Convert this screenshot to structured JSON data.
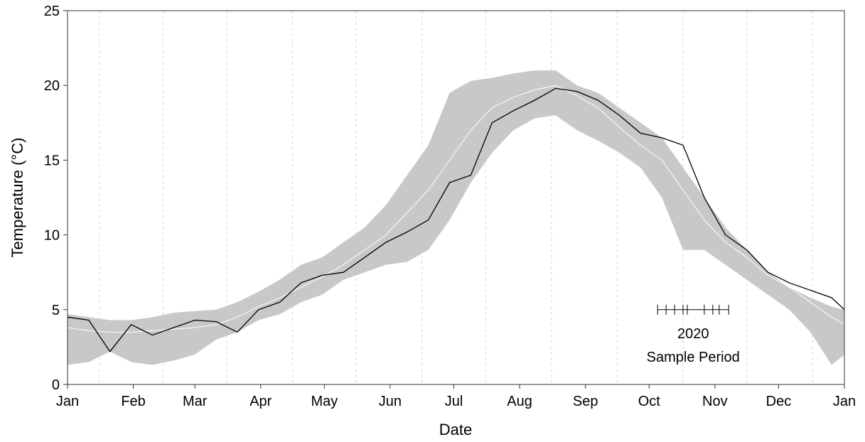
{
  "chart_data": {
    "type": "line",
    "xlabel": "Date",
    "ylabel": "Temperature (°C)",
    "x": [
      0,
      10,
      20,
      30,
      40,
      50,
      60,
      70,
      80,
      90,
      100,
      110,
      120,
      130,
      140,
      150,
      160,
      170,
      180,
      190,
      200,
      210,
      220,
      230,
      240,
      250,
      260,
      270,
      280,
      290,
      300,
      310,
      320,
      330,
      340,
      350,
      360,
      366
    ],
    "band": {
      "color": "#c8c8c8",
      "upper": [
        4.7,
        4.5,
        4.3,
        4.3,
        4.5,
        4.8,
        4.9,
        5.0,
        5.5,
        6.2,
        7.0,
        8.0,
        8.5,
        9.5,
        10.5,
        12.0,
        14.0,
        16.0,
        19.5,
        20.3,
        20.5,
        20.8,
        21.0,
        21.0,
        20.0,
        19.5,
        18.5,
        17.5,
        16.5,
        14.5,
        12.5,
        10.5,
        9.0,
        7.5,
        6.5,
        5.8,
        5.2,
        5.0
      ],
      "lower": [
        1.3,
        1.5,
        2.2,
        1.5,
        1.3,
        1.6,
        2.0,
        3.0,
        3.5,
        4.3,
        4.7,
        5.5,
        6.0,
        7.0,
        7.5,
        8.0,
        8.2,
        9.0,
        11.0,
        13.5,
        15.5,
        17.0,
        17.8,
        18.0,
        17.0,
        16.3,
        15.5,
        14.5,
        12.5,
        9.0,
        9.0,
        8.0,
        7.0,
        6.0,
        5.0,
        3.5,
        1.3,
        2.0
      ]
    },
    "series": [
      {
        "color": "#ffffff",
        "values": [
          3.8,
          3.6,
          3.5,
          3.5,
          3.6,
          3.7,
          3.8,
          4.0,
          4.5,
          5.2,
          5.8,
          6.5,
          7.2,
          8.0,
          9.0,
          10.0,
          11.5,
          13.0,
          15.0,
          17.0,
          18.5,
          19.2,
          19.7,
          20.0,
          19.3,
          18.5,
          17.2,
          16.0,
          15.0,
          13.0,
          11.0,
          9.5,
          8.5,
          7.3,
          6.5,
          5.5,
          4.5,
          4.0
        ]
      },
      {
        "color": "#000000",
        "values": [
          4.5,
          4.3,
          2.2,
          4.0,
          3.3,
          3.8,
          4.3,
          4.2,
          3.5,
          5.0,
          5.5,
          6.8,
          7.3,
          7.5,
          8.5,
          9.5,
          10.2,
          11.0,
          13.5,
          14.0,
          17.5,
          18.3,
          19.0,
          19.8,
          19.6,
          19.0,
          18.0,
          16.8,
          16.5,
          16.0,
          12.5,
          10.0,
          9.0,
          7.5,
          6.8,
          6.3,
          5.8,
          5.0
        ]
      }
    ],
    "xlim": [
      0,
      366
    ],
    "xticks": [
      {
        "value": 0,
        "label": "Jan"
      },
      {
        "value": 31,
        "label": "Feb"
      },
      {
        "value": 60,
        "label": "Mar"
      },
      {
        "value": 91,
        "label": "Apr"
      },
      {
        "value": 121,
        "label": "May"
      },
      {
        "value": 152,
        "label": "Jun"
      },
      {
        "value": 182,
        "label": "Jul"
      },
      {
        "value": 213,
        "label": "Aug"
      },
      {
        "value": 244,
        "label": "Sep"
      },
      {
        "value": 274,
        "label": "Oct"
      },
      {
        "value": 305,
        "label": "Nov"
      },
      {
        "value": 335,
        "label": "Dec"
      },
      {
        "value": 366,
        "label": "Jan"
      }
    ],
    "x_minor_grid": [
      15,
      45,
      75,
      106,
      136,
      167,
      197,
      228,
      259,
      290,
      320,
      351
    ],
    "ylim": [
      0,
      25
    ],
    "yticks": [
      0,
      5,
      10,
      15,
      20,
      25
    ],
    "sample_period": {
      "y": 5,
      "days": [
        278,
        282,
        286,
        290,
        292,
        300,
        304,
        307,
        311.5
      ],
      "labels": [
        "2020",
        "Sample Period"
      ]
    }
  }
}
